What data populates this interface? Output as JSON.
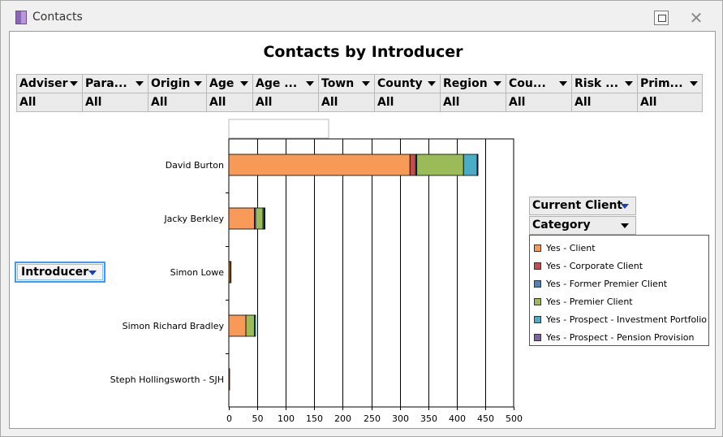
{
  "window": {
    "title": "Contacts"
  },
  "filters": [
    {
      "label": "Adviser",
      "value": "All"
    },
    {
      "label": "Para...",
      "value": "All"
    },
    {
      "label": "Origin",
      "value": "All"
    },
    {
      "label": "Age",
      "value": "All"
    },
    {
      "label": "Age ...",
      "value": "All"
    },
    {
      "label": "Town",
      "value": "All"
    },
    {
      "label": "County",
      "value": "All"
    },
    {
      "label": "Region",
      "value": "All"
    },
    {
      "label": "Cou...",
      "value": "All"
    },
    {
      "label": "Risk ...",
      "value": "All"
    },
    {
      "label": "Prim...",
      "value": "All"
    }
  ],
  "axis_field_label": "Introducer",
  "series_fields": [
    "Current Client",
    "Category"
  ],
  "icons": {
    "app": "app-icon",
    "restore": "restore-icon",
    "close": "close-icon",
    "dropdown": "chevron-down-icon"
  },
  "colors": {
    "Yes - Client": "#f79a57",
    "Yes - Corporate Client": "#c0504d",
    "Yes - Former Premier Client": "#4f81bd",
    "Yes - Premier Client": "#9bbb59",
    "Yes - Prospect - Investment Portfolio": "#4bacc6",
    "Yes - Prospect - Pension Provision": "#8064a2"
  },
  "chart_data": {
    "type": "bar",
    "orientation": "horizontal",
    "stacked": true,
    "title": "Contacts by Introducer",
    "xlabel": "",
    "ylabel": "",
    "xlim": [
      0,
      500
    ],
    "xticks": [
      0,
      50,
      100,
      150,
      200,
      250,
      300,
      350,
      400,
      450,
      500
    ],
    "grid": true,
    "legend_position": "right",
    "categories": [
      "David Burton",
      "Jacky Berkley",
      "Simon Lowe",
      "Simon Richard Bradley",
      "Steph Hollingsworth - SJH"
    ],
    "series": [
      {
        "name": "Yes - Client",
        "values": [
          318,
          45,
          2,
          30,
          1
        ]
      },
      {
        "name": "Yes - Corporate Client",
        "values": [
          10,
          0,
          0,
          0,
          0
        ]
      },
      {
        "name": "Yes - Former Premier Client",
        "values": [
          2,
          2,
          0,
          0,
          0
        ]
      },
      {
        "name": "Yes - Premier Client",
        "values": [
          82,
          13,
          2,
          15,
          0
        ]
      },
      {
        "name": "Yes - Prospect - Investment Portfolio",
        "values": [
          24,
          2,
          0,
          2,
          0
        ]
      },
      {
        "name": "Yes - Prospect - Pension Provision",
        "values": [
          1,
          1,
          0,
          0,
          0
        ]
      }
    ]
  }
}
